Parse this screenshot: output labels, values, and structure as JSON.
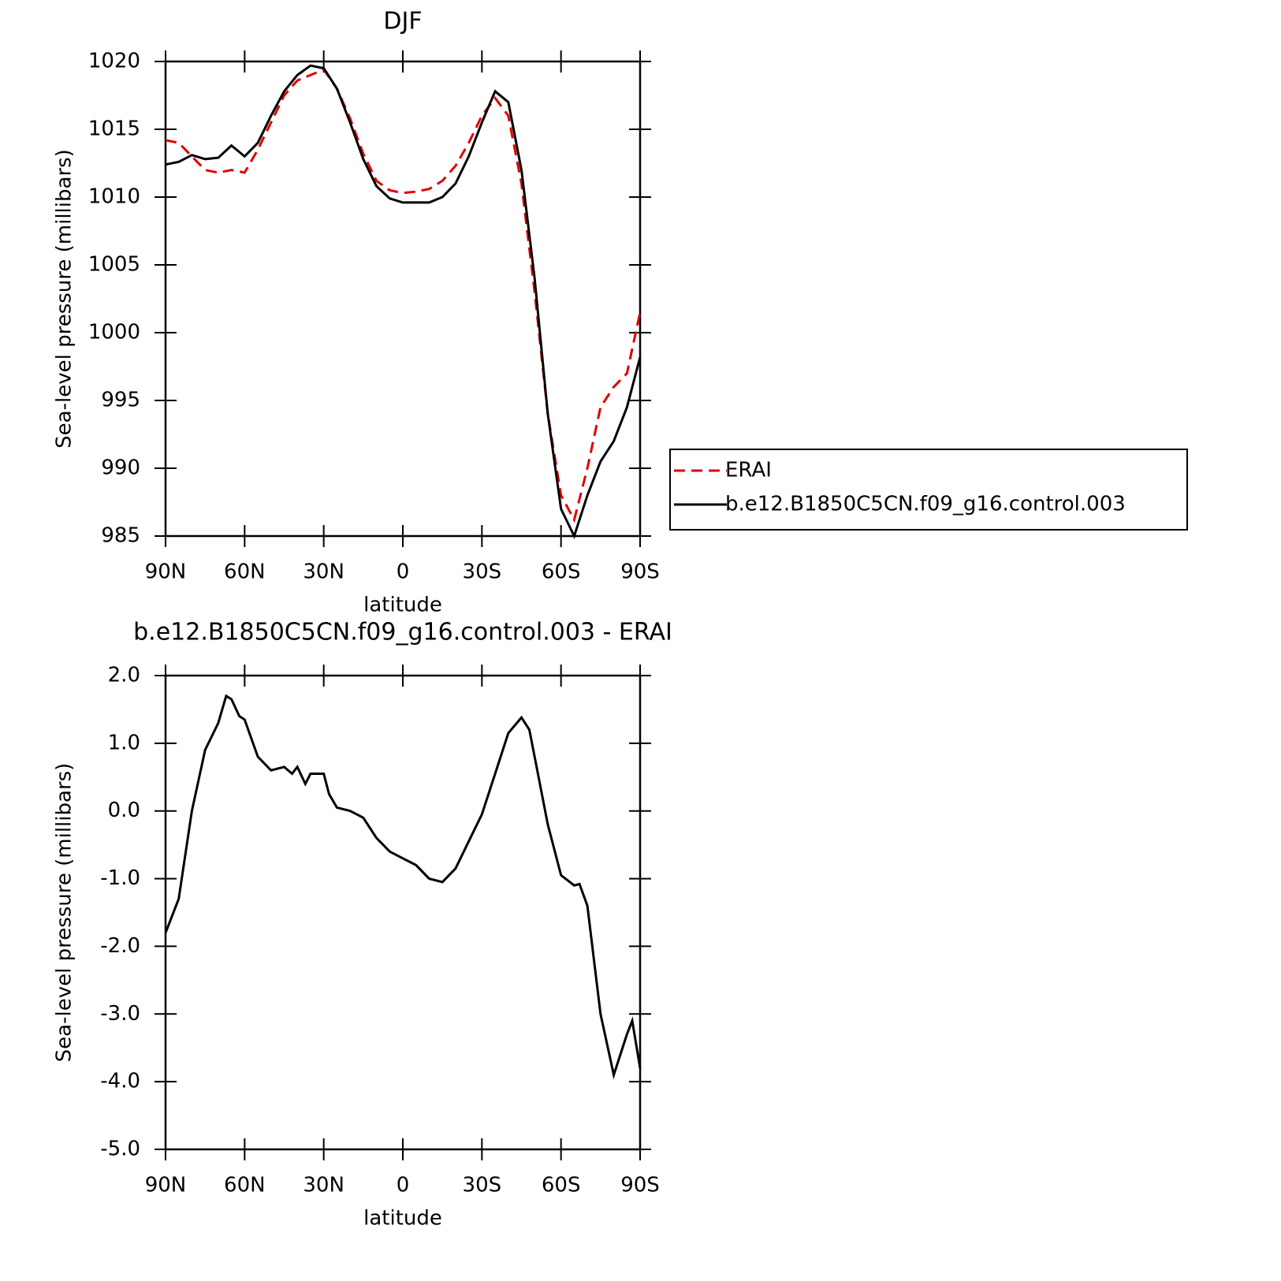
{
  "chart_data": [
    {
      "type": "line",
      "title": "DJF",
      "x_label": "latitude",
      "y_label": "Sea-level pressure (millibars)",
      "x": [
        90,
        85,
        80,
        75,
        70,
        65,
        60,
        55,
        50,
        45,
        40,
        35,
        30,
        25,
        20,
        15,
        10,
        5,
        0,
        -5,
        -10,
        -15,
        -20,
        -25,
        -30,
        -35,
        -40,
        -45,
        -50,
        -55,
        -60,
        -65,
        -70,
        -75,
        -80,
        -85,
        -90
      ],
      "series": [
        {
          "name": "ERAI",
          "color": "#e00000",
          "line_style": "dashed",
          "values": [
            1014.2,
            1014.0,
            1013.0,
            1012.0,
            1011.8,
            1012.0,
            1011.8,
            1013.5,
            1015.5,
            1017.5,
            1018.6,
            1019.0,
            1019.4,
            1018.0,
            1015.8,
            1013.2,
            1011.2,
            1010.5,
            1010.3,
            1010.4,
            1010.6,
            1011.2,
            1012.3,
            1014.0,
            1016.0,
            1017.3,
            1016.0,
            1011.0,
            1003.0,
            994.0,
            988.0,
            986.2,
            990.0,
            994.5,
            996.0,
            997.0,
            1001.5
          ]
        },
        {
          "name": "b.e12.B1850C5CN.f09_g16.control.003",
          "color": "#000000",
          "line_style": "solid",
          "values": [
            1012.4,
            1012.6,
            1013.1,
            1012.8,
            1012.9,
            1013.8,
            1013.0,
            1014.0,
            1016.0,
            1017.8,
            1019.0,
            1019.7,
            1019.5,
            1018.0,
            1015.5,
            1012.8,
            1010.8,
            1009.9,
            1009.6,
            1009.6,
            1009.6,
            1010.0,
            1011.0,
            1013.0,
            1015.5,
            1017.8,
            1017.0,
            1012.0,
            1004.0,
            994.0,
            987.0,
            985.0,
            988.0,
            990.5,
            992.0,
            994.5,
            998.2
          ]
        }
      ],
      "xlim": [
        90,
        -90
      ],
      "xticks": [
        {
          "value": 90,
          "label": "90N"
        },
        {
          "value": 60,
          "label": "60N"
        },
        {
          "value": 30,
          "label": "30N"
        },
        0,
        {
          "value": -30,
          "label": "30S"
        },
        {
          "value": -60,
          "label": "60S"
        },
        {
          "value": -90,
          "label": "90S"
        }
      ],
      "ylim": [
        985,
        1020
      ],
      "yticks": [
        985,
        990,
        995,
        1000,
        1005,
        1010,
        1015,
        1020
      ],
      "legend": "outside-right"
    },
    {
      "type": "line",
      "title": "b.e12.B1850C5CN.f09_g16.control.003 - ERAI",
      "x_label": "latitude",
      "y_label": "Sea-level pressure (millibars)",
      "x": [
        90,
        85,
        80,
        75,
        70,
        67,
        65,
        62,
        60,
        55,
        50,
        45,
        42,
        40,
        37,
        35,
        30,
        28,
        25,
        20,
        15,
        10,
        5,
        0,
        -5,
        -10,
        -15,
        -20,
        -25,
        -30,
        -35,
        -40,
        -45,
        -48,
        -50,
        -55,
        -60,
        -65,
        -67,
        -70,
        -75,
        -80,
        -85,
        -87,
        -90
      ],
      "series": [
        {
          "color": "#000000",
          "line_style": "solid",
          "values": [
            -1.8,
            -1.3,
            0.0,
            0.9,
            1.3,
            1.7,
            1.65,
            1.4,
            1.35,
            0.8,
            0.6,
            0.65,
            0.55,
            0.65,
            0.4,
            0.55,
            0.55,
            0.25,
            0.05,
            0.0,
            -0.1,
            -0.4,
            -0.6,
            -0.7,
            -0.8,
            -1.0,
            -1.05,
            -0.85,
            -0.45,
            -0.05,
            0.55,
            1.15,
            1.38,
            1.2,
            0.8,
            -0.2,
            -0.95,
            -1.1,
            -1.08,
            -1.4,
            -3.0,
            -3.9,
            -3.3,
            -3.1,
            -3.8
          ]
        }
      ],
      "xlim": [
        90,
        -90
      ],
      "xticks": [
        {
          "value": 90,
          "label": "90N"
        },
        {
          "value": 60,
          "label": "60N"
        },
        {
          "value": 30,
          "label": "30N"
        },
        0,
        {
          "value": -30,
          "label": "30S"
        },
        {
          "value": -60,
          "label": "60S"
        },
        {
          "value": -90,
          "label": "90S"
        }
      ],
      "ylim": [
        -5,
        2
      ],
      "yticks": [
        {
          "value": -5,
          "label": "-5.0"
        },
        {
          "value": -4,
          "label": "-4.0"
        },
        {
          "value": -3,
          "label": "-3.0"
        },
        {
          "value": -2,
          "label": "-2.0"
        },
        {
          "value": -1,
          "label": "-1.0"
        },
        {
          "value": 0,
          "label": "0.0"
        },
        {
          "value": 1,
          "label": "1.0"
        },
        {
          "value": 2,
          "label": "2.0"
        }
      ]
    }
  ]
}
